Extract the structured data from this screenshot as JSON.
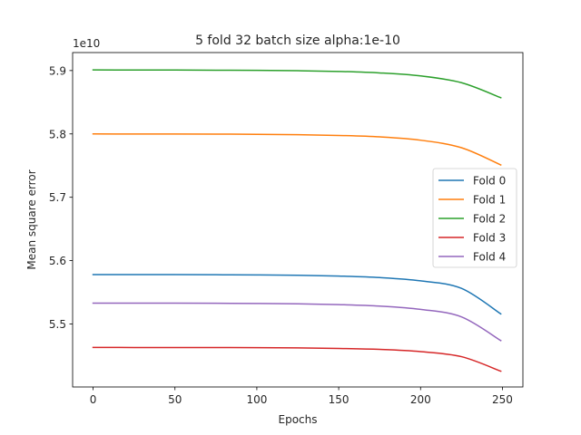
{
  "chart_data": {
    "type": "line",
    "title": "5 fold 32 batch size alpha:1e-10",
    "xlabel": "Epochs",
    "ylabel": "Mean square error",
    "y_multiplier_label": "1e10",
    "xlim": [
      -12.5,
      262.5
    ],
    "ylim": [
      5.4006,
      5.9284
    ],
    "x_ticks": [
      0,
      50,
      100,
      150,
      200,
      250
    ],
    "y_ticks": [
      5.5,
      5.6,
      5.7,
      5.8,
      5.9
    ],
    "x_tick_labels": [
      "0",
      "50",
      "100",
      "150",
      "200",
      "250"
    ],
    "y_tick_labels": [
      "5.5",
      "5.6",
      "5.7",
      "5.8",
      "5.9"
    ],
    "grid": false,
    "legend_position": "center-right",
    "x": [
      0,
      25,
      50,
      75,
      100,
      125,
      150,
      175,
      200,
      225,
      249
    ],
    "series": [
      {
        "name": "Fold 0",
        "color": "#1f77b4",
        "values": [
          5.578,
          5.5779,
          5.5779,
          5.5777,
          5.5774,
          5.5768,
          5.5756,
          5.5733,
          5.5681,
          5.5562,
          5.5159
        ]
      },
      {
        "name": "Fold 1",
        "color": "#ff7f0e",
        "values": [
          5.8,
          5.7999,
          5.7999,
          5.7997,
          5.7994,
          5.7988,
          5.7976,
          5.7953,
          5.7901,
          5.7782,
          5.751
        ]
      },
      {
        "name": "Fold 2",
        "color": "#2ca02c",
        "values": [
          5.901,
          5.9009,
          5.9008,
          5.9006,
          5.9003,
          5.8997,
          5.8986,
          5.8963,
          5.8915,
          5.8808,
          5.8571
        ]
      },
      {
        "name": "Fold 3",
        "color": "#d62728",
        "values": [
          5.463,
          5.4629,
          5.4629,
          5.4628,
          5.4626,
          5.4622,
          5.4614,
          5.4599,
          5.4564,
          5.4484,
          5.4255
        ]
      },
      {
        "name": "Fold 4",
        "color": "#9467bd",
        "values": [
          5.533,
          5.5329,
          5.5329,
          5.5327,
          5.5324,
          5.5318,
          5.5306,
          5.5283,
          5.5231,
          5.5112,
          5.4738
        ]
      }
    ]
  }
}
